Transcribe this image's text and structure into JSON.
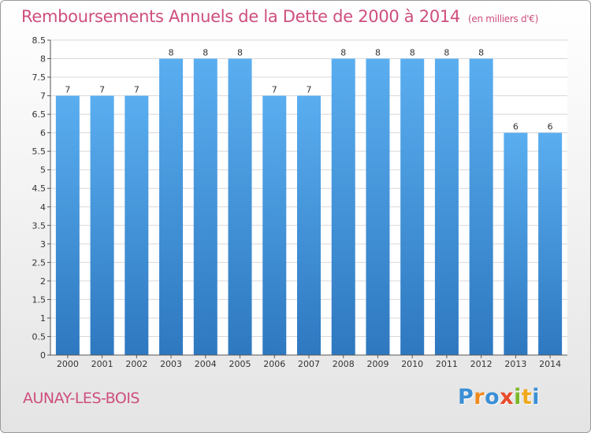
{
  "chart_data": {
    "type": "bar",
    "title": "Remboursements Annuels de la Dette de 2000 à 2014",
    "subtitle": "(en milliers d'€)",
    "categories": [
      "2000",
      "2001",
      "2002",
      "2003",
      "2004",
      "2005",
      "2006",
      "2007",
      "2008",
      "2009",
      "2010",
      "2011",
      "2012",
      "2013",
      "2014"
    ],
    "values": [
      7,
      7,
      7,
      8,
      8,
      8,
      7,
      7,
      8,
      8,
      8,
      8,
      8,
      6,
      6
    ],
    "data_labels": [
      "7",
      "7",
      "7",
      "8",
      "8",
      "8",
      "7",
      "7",
      "8",
      "8",
      "8",
      "8",
      "8",
      "6",
      "6"
    ],
    "ylim": [
      0,
      8.5
    ],
    "yticks": [
      0,
      0.5,
      1,
      1.5,
      2,
      2.5,
      3,
      3.5,
      4,
      4.5,
      5,
      5.5,
      6,
      6.5,
      7,
      7.5,
      8,
      8.5
    ],
    "ytick_labels": [
      "0",
      "0.5",
      "1",
      "1.5",
      "2",
      "2.5",
      "3",
      "3.5",
      "4",
      "4.5",
      "5",
      "5.5",
      "6",
      "6.5",
      "7",
      "7.5",
      "8",
      "8.5"
    ],
    "grid": true,
    "bar_color": "#4a9ee0"
  },
  "footer": {
    "commune": "AUNAY-LES-BOIS",
    "brand": [
      {
        "char": "P",
        "color": "#3a8fd6"
      },
      {
        "char": "r",
        "color": "#f08a1c"
      },
      {
        "char": "o",
        "color": "#3a8fd6"
      },
      {
        "char": "x",
        "color": "#e84a2a"
      },
      {
        "char": "i",
        "color": "#7ab828"
      },
      {
        "char": "t",
        "color": "#f0a81c"
      },
      {
        "char": "i",
        "color": "#3a8fd6"
      }
    ]
  }
}
